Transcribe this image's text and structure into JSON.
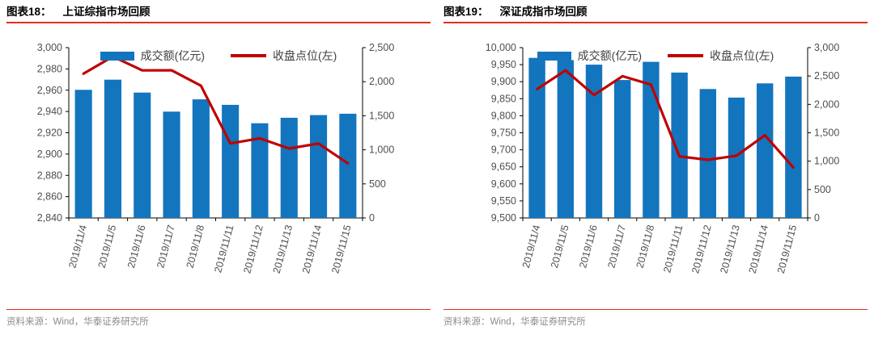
{
  "colors": {
    "bar": "#1375bd",
    "line": "#c00000",
    "rule": "#e0301e",
    "axis_label": "#4f4f4f",
    "source_text": "#8c8c8c"
  },
  "panels": [
    {
      "figure_label": "图表18：",
      "title": "上证综指市场回顾",
      "source": "资料来源：Wind，华泰证券研究所"
    },
    {
      "figure_label": "图表19：",
      "title": "深证成指市场回顾",
      "source": "资料来源：Wind，华泰证券研究所"
    }
  ],
  "chart_data": [
    {
      "type": "bar",
      "subtype": "bar+line combo, dual y-axes",
      "title": "上证综指市场回顾",
      "categories": [
        "2019/11/4",
        "2019/11/5",
        "2019/11/6",
        "2019/11/7",
        "2019/11/8",
        "2019/11/11",
        "2019/11/12",
        "2019/11/13",
        "2019/11/14",
        "2019/11/15"
      ],
      "series": [
        {
          "name": "成交额(亿元)",
          "type": "bar",
          "axis": "right",
          "values": [
            1880,
            2030,
            1840,
            1560,
            1740,
            1660,
            1390,
            1470,
            1510,
            1530
          ]
        },
        {
          "name": "收盘点位(左)",
          "type": "line",
          "axis": "left",
          "values": [
            2975.5,
            2991.6,
            2978.6,
            2978.7,
            2964.2,
            2910.0,
            2914.8,
            2905.2,
            2909.9,
            2891.3
          ]
        }
      ],
      "left_axis": {
        "min": 2840,
        "max": 3000,
        "step": 20
      },
      "right_axis": {
        "min": 0,
        "max": 2500,
        "step": 500
      },
      "grid": false,
      "legend_position": "top"
    },
    {
      "type": "bar",
      "subtype": "bar+line combo, dual y-axes",
      "title": "深证成指市场回顾",
      "categories": [
        "2019/11/4",
        "2019/11/5",
        "2019/11/6",
        "2019/11/7",
        "2019/11/8",
        "2019/11/11",
        "2019/11/12",
        "2019/11/13",
        "2019/11/14",
        "2019/11/15"
      ],
      "series": [
        {
          "name": "成交额(亿元)",
          "type": "bar",
          "axis": "right",
          "values": [
            2820,
            2780,
            2700,
            2430,
            2750,
            2560,
            2270,
            2120,
            2370,
            2490
          ]
        },
        {
          "name": "收盘点位(左)",
          "type": "line",
          "axis": "left",
          "values": [
            9878.3,
            9933.2,
            9861.0,
            9916.1,
            9891.5,
            9680.6,
            9670.5,
            9682.8,
            9742.7,
            9648.0
          ]
        }
      ],
      "left_axis": {
        "min": 9500,
        "max": 10000,
        "step": 50
      },
      "right_axis": {
        "min": 0,
        "max": 3000,
        "step": 500
      },
      "grid": false,
      "legend_position": "top"
    }
  ]
}
